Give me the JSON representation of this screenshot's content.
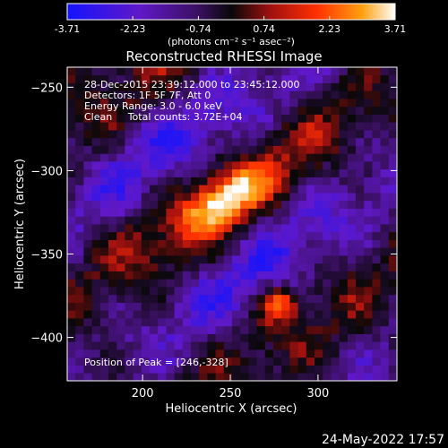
{
  "chart_data": {
    "type": "heatmap",
    "title": "Reconstructed RHESSI Image",
    "xlabel": "Heliocentric X (arcsec)",
    "ylabel": "Heliocentric Y (arcsec)",
    "xlim": [
      157,
      345
    ],
    "ylim": [
      -426,
      -238
    ],
    "x_ticks": [
      200,
      250,
      300
    ],
    "y_ticks": [
      -250,
      -300,
      -350,
      -400
    ],
    "colorbar": {
      "min": -3.71,
      "max": 3.71,
      "ticks": [
        "-3.71",
        "-2.23",
        "-0.74",
        "0.74",
        "2.23",
        "3.71"
      ],
      "unit_label": "(photons cm⁻² s⁻¹ asec⁻²)",
      "colors": [
        "#1010ff",
        "#6a18c0",
        "#4a1a80",
        "#0a0a0a",
        "#9a1010",
        "#ff3000",
        "#ff9a10",
        "#ffffff"
      ]
    },
    "annotations": [
      "28-Dec-2015 23:39:12.000 to 23:45:12.000",
      "Detectors: 1F 5F 7F, Att 0",
      "Energy Range: 3.0 - 6.0 keV",
      "Clean     Total counts: 3.72E+04"
    ],
    "peak_label": "Position of Peak = [246,-328]",
    "peak": [
      246,
      -328
    ],
    "grid": false
  },
  "footer": {
    "date": "24-May-2022 17:57"
  }
}
